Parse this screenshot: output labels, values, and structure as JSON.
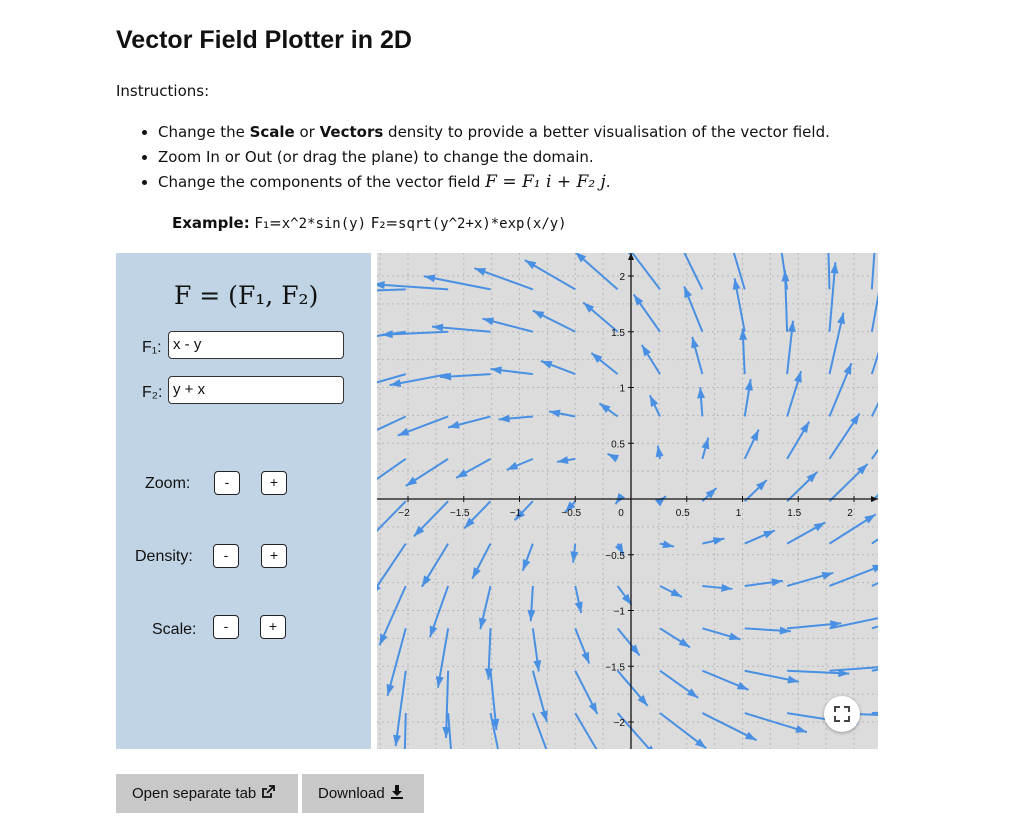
{
  "page": {
    "title": "Vector Field Plotter in 2D",
    "instructions_label": "Instructions:",
    "bullets": {
      "b1": {
        "pre": "Change the ",
        "scale": "Scale",
        "mid": " or ",
        "vectors": "Vectors",
        "post": " density to provide a better visualisation of the vector field."
      },
      "b2": {
        "text": "Zoom In or Out (or drag the plane) to change the domain."
      },
      "b3": {
        "pre": "Change the components of the vector field ",
        "math": "F = F₁ i + F₂ j",
        "post": "."
      }
    },
    "example": {
      "label": "Example:",
      "f1_label": "F₁=",
      "f1_expr": "x^2*sin(y)",
      "f2_label": "F₂=",
      "f2_expr": "sqrt(y^2+x)*exp(x/y)"
    }
  },
  "panel": {
    "formula": "F = (F₁, F₂)",
    "f1_label": "F₁:",
    "f1_value": "x - y",
    "f2_label": "F₂:",
    "f2_value": "y + x",
    "zoom_label": "Zoom:",
    "density_label": "Density:",
    "scale_label": "Scale:",
    "minus": "-",
    "plus": "+"
  },
  "plot": {
    "x_ticks": [
      "−2",
      "−1.5",
      "−1",
      "−0.5",
      "0",
      "0.5",
      "1",
      "1.5",
      "2"
    ],
    "y_ticks": [
      "2",
      "1.5",
      "1",
      "0.5",
      "−0.5",
      "−1",
      "−1.5",
      "−2"
    ],
    "vector_color": "#4a90e2",
    "background": "#dcdcdc",
    "fullscreen_icon": "fullscreen-icon"
  },
  "buttons": {
    "open_tab": "Open separate tab",
    "open_tab_icon": "external-link-icon",
    "download": "Download",
    "download_icon": "download-icon"
  }
}
